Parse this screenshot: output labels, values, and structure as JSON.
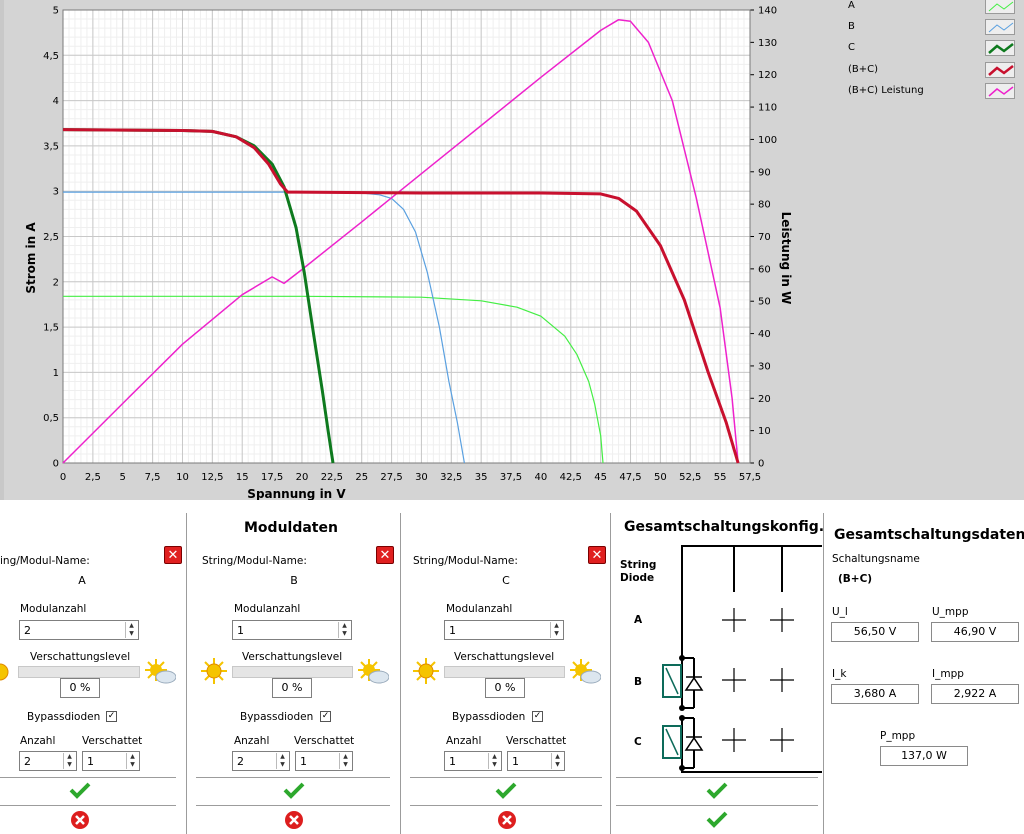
{
  "chart_data": {
    "type": "line",
    "xlabel": "Spannung in V",
    "ylabel": "Strom in A",
    "y2label": "Leistung in W",
    "xlim": [
      0,
      57.5
    ],
    "ylim": [
      0,
      5
    ],
    "y2lim": [
      0,
      140
    ],
    "xticks": [
      "0",
      "2,5",
      "5",
      "7,5",
      "10",
      "12,5",
      "15",
      "17,5",
      "20",
      "22,5",
      "25",
      "27,5",
      "30",
      "32,5",
      "35",
      "37,5",
      "40",
      "42,5",
      "45",
      "47,5",
      "50",
      "52,5",
      "55",
      "57,5"
    ],
    "yticks": [
      "0",
      "0,5",
      "1",
      "1,5",
      "2",
      "2,5",
      "3",
      "3,5",
      "4",
      "4,5",
      "5"
    ],
    "y2ticks": [
      "0",
      "10",
      "20",
      "30",
      "40",
      "50",
      "60",
      "70",
      "80",
      "90",
      "100",
      "110",
      "120",
      "130",
      "140"
    ],
    "grid": true,
    "series": [
      {
        "name": "A",
        "color": "#44ee44",
        "axis": "left",
        "x": [
          0,
          20,
          30,
          35,
          38,
          40,
          42,
          43,
          44,
          44.5,
          45,
          45.2
        ],
        "y": [
          1.84,
          1.84,
          1.83,
          1.79,
          1.72,
          1.62,
          1.4,
          1.2,
          0.9,
          0.65,
          0.3,
          0
        ]
      },
      {
        "name": "B",
        "color": "#5aa0e0",
        "axis": "left",
        "x": [
          0,
          20,
          25,
          26.5,
          27.5,
          28.5,
          29.5,
          30.5,
          31.5,
          32.3,
          33,
          33.6
        ],
        "y": [
          2.99,
          2.99,
          2.98,
          2.96,
          2.92,
          2.8,
          2.55,
          2.1,
          1.5,
          0.9,
          0.45,
          0
        ]
      },
      {
        "name": "C",
        "color": "#0e7a1e",
        "axis": "left",
        "x": [
          0,
          10,
          12.5,
          14.5,
          16,
          17.5,
          18.5,
          19.5,
          20.2,
          21,
          21.7,
          22.2,
          22.6
        ],
        "y": [
          3.68,
          3.67,
          3.66,
          3.6,
          3.5,
          3.3,
          3.05,
          2.6,
          2.1,
          1.4,
          0.8,
          0.35,
          0
        ]
      },
      {
        "name": "(B+C)",
        "color": "#c8102e",
        "axis": "left",
        "x": [
          0,
          10,
          12.5,
          14.5,
          16,
          17.2,
          18.2,
          18.8,
          19.5,
          30,
          40,
          45,
          46.5,
          48,
          50,
          52,
          54,
          55.5,
          56.5
        ],
        "y": [
          3.68,
          3.67,
          3.66,
          3.6,
          3.48,
          3.3,
          3.08,
          2.99,
          2.99,
          2.98,
          2.98,
          2.97,
          2.92,
          2.78,
          2.4,
          1.8,
          1.0,
          0.45,
          0
        ]
      },
      {
        "name": "(B+C)  Leistung",
        "color": "#ee22cc",
        "axis": "right",
        "x": [
          0,
          5,
          10,
          15,
          17.5,
          18.5,
          20,
          25,
          30,
          35,
          40,
          45,
          46.5,
          47.5,
          49,
          51,
          53,
          55,
          56,
          56.5
        ],
        "y": [
          0,
          18.4,
          36.7,
          52,
          57.5,
          55.5,
          59.8,
          74.5,
          89.4,
          104.3,
          119.2,
          133.7,
          137,
          136.5,
          130,
          112,
          82,
          48,
          20,
          0
        ]
      }
    ]
  },
  "legend": {
    "items": [
      {
        "label": "A",
        "color": "#44ee44"
      },
      {
        "label": "B",
        "color": "#5aa0e0"
      },
      {
        "label": "C",
        "color": "#0e7a1e"
      },
      {
        "label": "(B+C)",
        "color": "#c8102e"
      },
      {
        "label": "(B+C)  Leistung",
        "color": "#ee22cc"
      }
    ]
  },
  "moduldaten": {
    "title": "Moduldaten",
    "name_label": "String/Modul-Name:",
    "name_label_clipped": "ing/Modul-Name:",
    "modulanzahl_label": "Modulanzahl",
    "verschattung_label": "Verschattungslevel",
    "bypass_label": "Bypassdioden",
    "anzahl_label": "Anzahl",
    "verschattet_label": "Verschattet",
    "panels": [
      {
        "name": "A",
        "modulanzahl": "2",
        "verschattung": "0 %",
        "verschattung_level": 0,
        "bypass_checked": "✓",
        "anzahl": "2",
        "verschattet": "1"
      },
      {
        "name": "B",
        "modulanzahl": "1",
        "verschattung": "0 %",
        "verschattung_level": 0,
        "bypass_checked": "✓",
        "anzahl": "2",
        "verschattet": "1"
      },
      {
        "name": "C",
        "modulanzahl": "1",
        "verschattung": "0 %",
        "verschattung_level": 0,
        "bypass_checked": "✓",
        "anzahl": "1",
        "verschattet": "1"
      }
    ]
  },
  "konfig": {
    "title": "Gesamtschaltungskonfig.",
    "string_label": "String",
    "diode_label": "Diode",
    "rows": [
      "A",
      "B",
      "C"
    ]
  },
  "daten": {
    "title": "Gesamtschaltungsdaten",
    "schaltungsname_label": "Schaltungsname",
    "schaltungsname": "(B+C)",
    "ul_label": "U_l",
    "ul": "56,50 V",
    "umpp_label": "U_mpp",
    "umpp": "46,90 V",
    "ik_label": "I_k",
    "ik": "3,680 A",
    "impp_label": "I_mpp",
    "impp": "2,922 A",
    "pmpp_label": "P_mpp",
    "pmpp": "137,0 W"
  }
}
